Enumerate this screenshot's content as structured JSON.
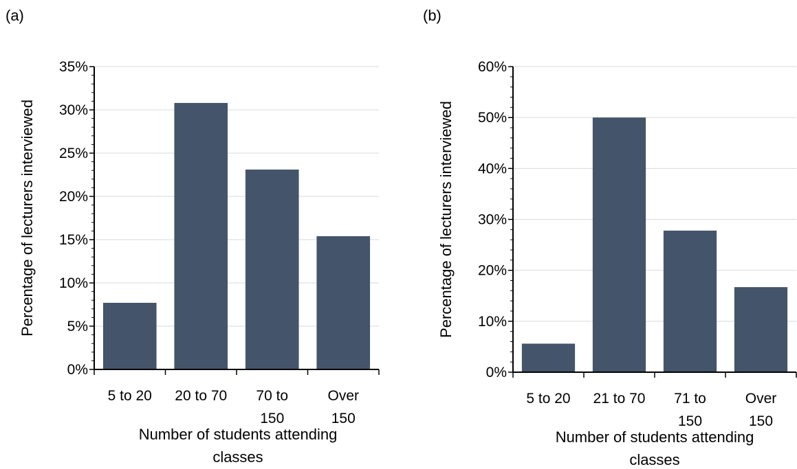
{
  "chart_data": [
    {
      "type": "bar",
      "panel_label": "(a)",
      "categories": [
        [
          "5 to 20"
        ],
        [
          "20 to 70"
        ],
        [
          "70 to",
          "150"
        ],
        [
          "Over",
          "150"
        ]
      ],
      "values": [
        7.7,
        30.8,
        23.1,
        15.4
      ],
      "ylim": [
        0,
        35
      ],
      "y_step": 5,
      "y_tick_suffix": "%",
      "ylabel": "Percentage of lecturers interviewed",
      "xlabel": [
        "Number of students attending",
        "classes"
      ],
      "bar_color": "#44546a",
      "grid": true,
      "legend": "none"
    },
    {
      "type": "bar",
      "panel_label": "(b)",
      "categories": [
        [
          "5 to 20"
        ],
        [
          "21 to 70"
        ],
        [
          "71 to",
          "150"
        ],
        [
          "Over",
          "150"
        ]
      ],
      "values": [
        5.6,
        50.0,
        27.8,
        16.7
      ],
      "ylim": [
        0,
        60
      ],
      "y_step": 10,
      "y_tick_suffix": "%",
      "ylabel": "Percentage of lecturers interviewed",
      "xlabel": [
        "Number of students attending",
        "classes"
      ],
      "bar_color": "#44546a",
      "grid": true,
      "legend": "none"
    }
  ]
}
